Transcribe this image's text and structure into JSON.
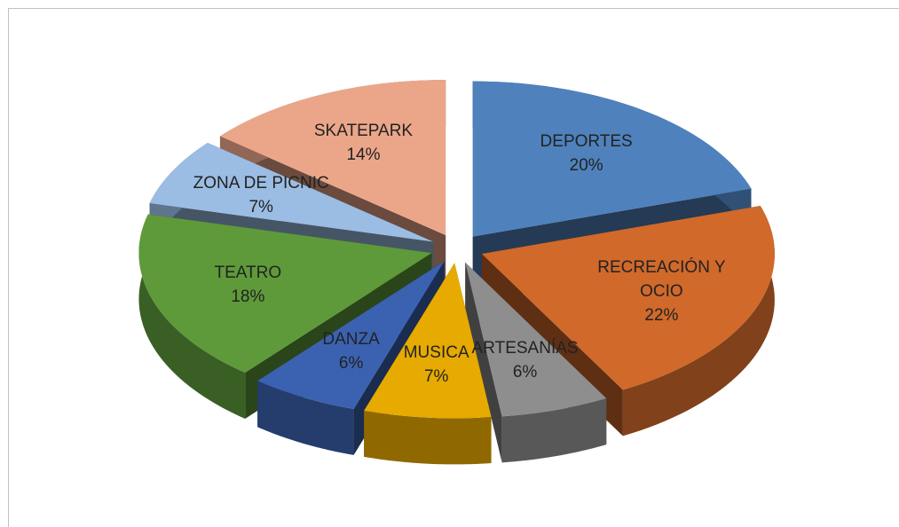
{
  "chart_data": {
    "type": "pie",
    "explode": true,
    "three_d": true,
    "categories": [
      "DEPORTES",
      "RECREACIÓN Y OCIO",
      "ARTESANÍAS",
      "MUSICA",
      "DANZA",
      "TEATRO",
      "ZONA DE PICNIC",
      "SKATEPARK"
    ],
    "values": [
      20,
      22,
      6,
      7,
      6,
      18,
      7,
      14
    ],
    "value_labels": [
      "20%",
      "22%",
      "6%",
      "7%",
      "6%",
      "18%",
      "7%",
      "14%"
    ],
    "colors": [
      "#4f81bd",
      "#d0692a",
      "#8e8e8e",
      "#e6aa00",
      "#3a62b0",
      "#5e9a3a",
      "#9bbde3",
      "#eba68a"
    ]
  }
}
